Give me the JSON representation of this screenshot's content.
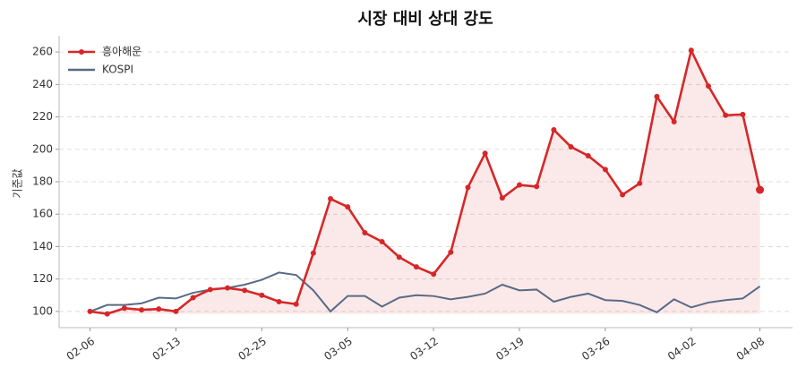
{
  "chart_data": {
    "type": "line",
    "title": "시장 대비 상대 강도",
    "ylabel": "기준값",
    "categories": [
      "02-06",
      null,
      null,
      null,
      null,
      "02-13",
      null,
      null,
      null,
      null,
      "02-25",
      null,
      null,
      null,
      null,
      "03-05",
      null,
      null,
      null,
      null,
      "03-12",
      null,
      null,
      null,
      null,
      "03-19",
      null,
      null,
      null,
      null,
      "03-26",
      null,
      null,
      null,
      null,
      "04-02",
      null,
      null,
      null,
      "04-08"
    ],
    "series": [
      {
        "name": "흥아해운",
        "color": "#d62728",
        "markers": true,
        "fill": true,
        "values": [
          100,
          98.5,
          102,
          101,
          101.5,
          100,
          108.5,
          113.5,
          114.5,
          113,
          110,
          106,
          104.5,
          136,
          169.5,
          164.5,
          148.5,
          143,
          133.5,
          127.5,
          123,
          136.5,
          176.5,
          197.5,
          170,
          178,
          177,
          212,
          201.5,
          196,
          187.5,
          172,
          179,
          232.5,
          217,
          261,
          239,
          221,
          221.5,
          175
        ]
      },
      {
        "name": "KOSPI",
        "color": "#5a6a85",
        "markers": false,
        "fill": false,
        "values": [
          100,
          104,
          104,
          105,
          108.5,
          108,
          111.5,
          113.5,
          114.5,
          116.5,
          119.5,
          124,
          122.5,
          113,
          100,
          109.5,
          109.5,
          103,
          108.5,
          110,
          109.5,
          107.5,
          109,
          111,
          116.5,
          113,
          113.5,
          106,
          109,
          111,
          107,
          106.5,
          104,
          99.5,
          107.5,
          102.5,
          105.5,
          107,
          108,
          115.5
        ]
      }
    ],
    "ylim": [
      90,
      270
    ],
    "yticks": [
      100,
      120,
      140,
      160,
      180,
      200,
      220,
      240,
      260
    ],
    "grid": true,
    "legend": "upper-left"
  }
}
